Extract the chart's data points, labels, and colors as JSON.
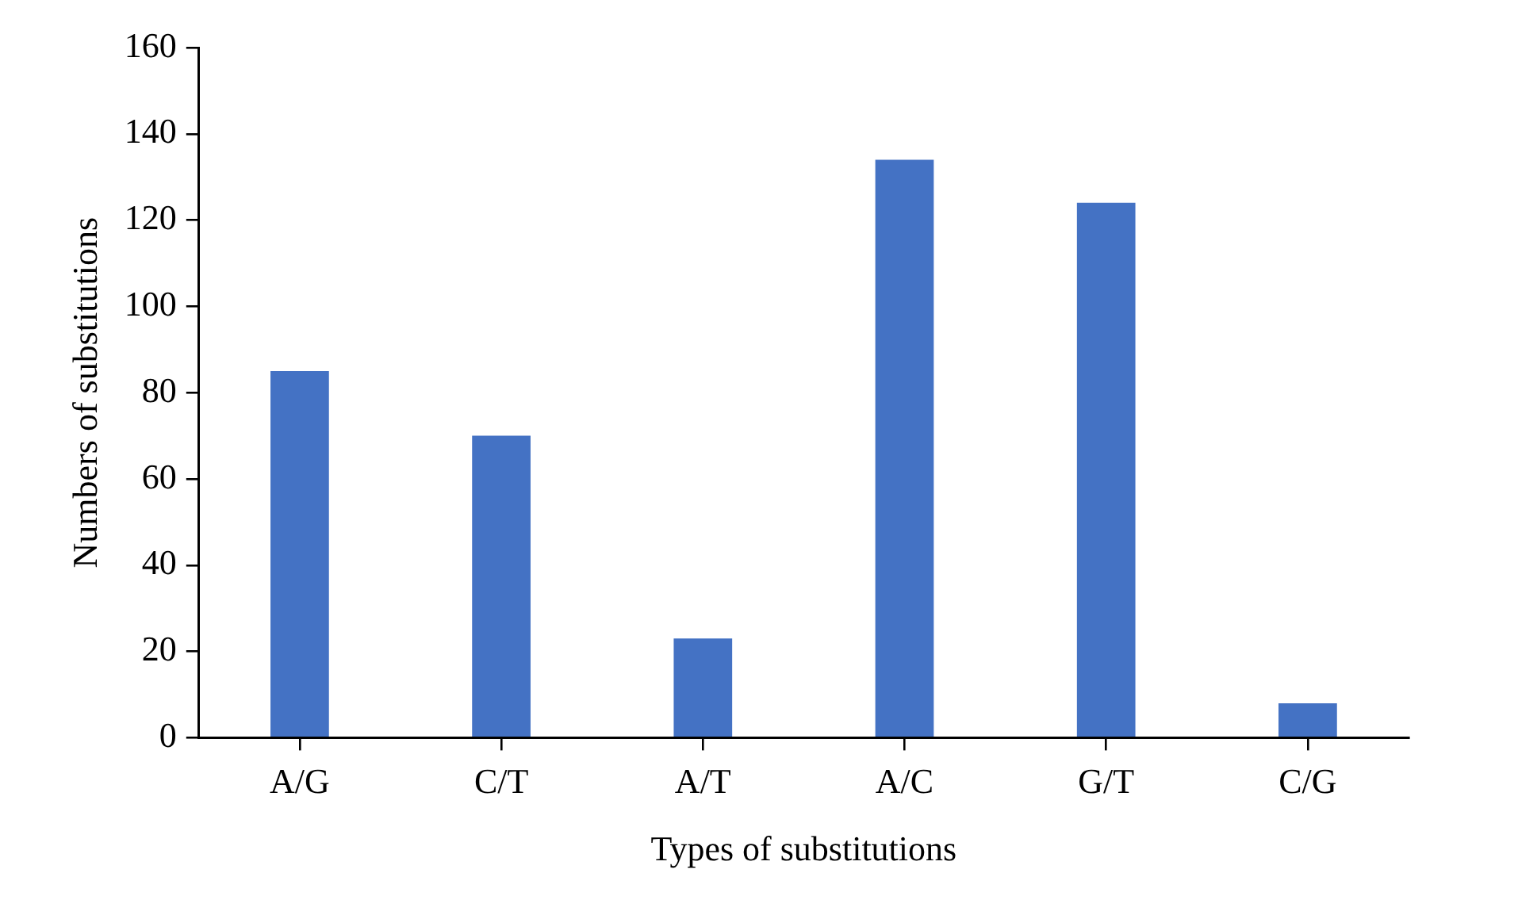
{
  "chart_data": {
    "type": "bar",
    "xlabel": "Types of substitutions",
    "ylabel": "Numbers of substitutions",
    "categories": [
      "A/G",
      "C/T",
      "A/T",
      "A/C",
      "G/T",
      "C/G"
    ],
    "values": [
      85,
      70,
      23,
      134,
      124,
      8
    ],
    "color": "#4472c4",
    "ylim": [
      0,
      160
    ],
    "yticks": [
      0,
      20,
      40,
      60,
      80,
      100,
      120,
      140,
      160
    ],
    "grid": false,
    "legend": false
  }
}
